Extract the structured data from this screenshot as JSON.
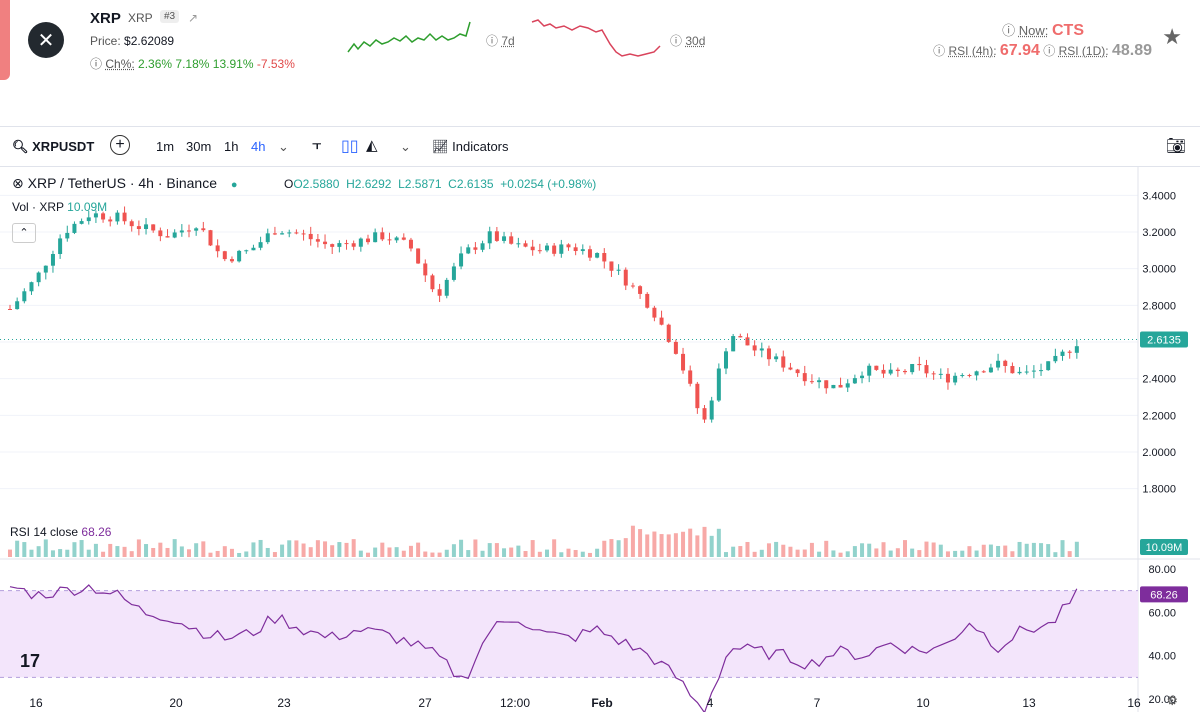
{
  "header": {
    "logo_glyph": "✕",
    "symbol": "XRP",
    "name": "XRP",
    "rank": "#3",
    "price_label": "Price:",
    "price_value": "$2.62089",
    "change_label": "Ch%:",
    "changes": [
      "2.36%",
      "7.18%",
      "13.91%",
      "-7.53%"
    ],
    "spark_7d_label": "7d",
    "spark_30d_label": "30d",
    "now_label": "Now:",
    "now_value": "CTS",
    "rsi4h_label": "RSI (4h):",
    "rsi4h_value": "67.94",
    "rsi1d_label": "RSI (1D):",
    "rsi1d_value": "48.89",
    "favorite_icon": "star-icon"
  },
  "toolbar": {
    "symbol": "XRPUSDT",
    "intervals": [
      "1m",
      "30m",
      "1h",
      "4h"
    ],
    "active_interval": "4h",
    "indicators_label": "Indicators"
  },
  "legend": {
    "title": "XRP / TetherUS · 4h · Binance",
    "open": "O2.5880",
    "high": "H2.6292",
    "low": "L2.5871",
    "close": "C2.6135",
    "change": "+0.0254 (+0.98%)",
    "vol_label": "Vol · XRP",
    "vol_value": "10.09M",
    "rsi_label": "RSI 14 close",
    "rsi_value": "68.26"
  },
  "colors": {
    "up": "#26a69a",
    "down": "#ef5350",
    "rsi": "#7e2d9c",
    "rsi_band": "#f3e5fb"
  },
  "chart_data": {
    "type": "candlestick",
    "price_axis_ticks": [
      "3.4000",
      "3.2000",
      "3.0000",
      "2.8000",
      "2.6000",
      "2.4000",
      "2.2000",
      "2.0000",
      "1.8000"
    ],
    "rsi_axis_ticks": [
      "80.00",
      "60.00",
      "40.00",
      "20.00"
    ],
    "x_tick_labels": [
      "16",
      "20",
      "23",
      "27",
      "12:00",
      "Feb",
      "4",
      "7",
      "10",
      "13",
      "16"
    ],
    "last_price": "2.6135",
    "last_volume": "10.09M",
    "last_rsi": "68.26",
    "price_path_approx": [
      2.78,
      2.95,
      3.2,
      3.3,
      3.28,
      3.22,
      3.18,
      3.25,
      3.05,
      3.1,
      3.22,
      3.18,
      3.12,
      3.15,
      3.18,
      3.12,
      2.85,
      3.08,
      3.18,
      3.12,
      3.1,
      3.12,
      3.08,
      2.95,
      2.8,
      2.55,
      2.15,
      2.65,
      2.55,
      2.48,
      2.4,
      2.35,
      2.45,
      2.42,
      2.46,
      2.4,
      2.44,
      2.48,
      2.42,
      2.47,
      2.6
    ],
    "rsi_path_approx": [
      72,
      68,
      70,
      72,
      68,
      60,
      58,
      52,
      48,
      50,
      58,
      52,
      48,
      52,
      50,
      46,
      40,
      28,
      52,
      58,
      50,
      48,
      52,
      46,
      40,
      30,
      14,
      44,
      42,
      40,
      36,
      42,
      40,
      46,
      42,
      44,
      56,
      44,
      52,
      54,
      68
    ]
  }
}
